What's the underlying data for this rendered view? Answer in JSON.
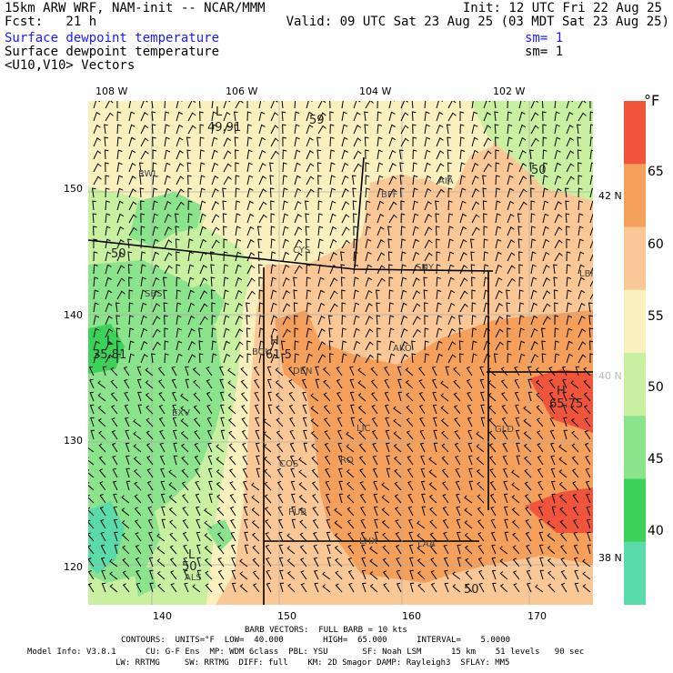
{
  "header": {
    "model_line": "15km ARW WRF, NAM-init -- NCAR/MMM",
    "init_line": "Init: 12 UTC Fri 22 Aug 25",
    "fcst_line": "Fcst:   21 h",
    "valid_line": "Valid: 09 UTC Sat 23 Aug 25 (03 MDT Sat 23 Aug 25)",
    "field1": "Surface dewpoint temperature",
    "field1_sm": "sm= 1",
    "field2": "Surface dewpoint temperature",
    "field2_sm": "sm= 1",
    "field3": "<U10,V10> Vectors"
  },
  "axes": {
    "top_lon": [
      "108 W",
      "106 W",
      "104 W",
      "102 W"
    ],
    "left_y": [
      "150",
      "140",
      "130",
      "120"
    ],
    "bottom_x": [
      "140",
      "150",
      "160",
      "170"
    ],
    "right_lat": [
      "42 N",
      "40 N",
      "38 N"
    ]
  },
  "legend": {
    "unit": "°F",
    "labels": [
      "65",
      "60",
      "55",
      "50",
      "45",
      "40"
    ],
    "colors": [
      "#f0553c",
      "#f5a05a",
      "#fac896",
      "#faf0be",
      "#c8f0a0",
      "#8be38b",
      "#3cd25a",
      "#5adcaa"
    ]
  },
  "map_labels": {
    "stations": [
      "RWL",
      "BFF",
      "AIA",
      "CYS",
      "SNY",
      "SBS",
      "BOU",
      "AKO",
      "DEN",
      "EXV",
      "LIC",
      "GLD",
      "COS",
      "RO",
      "PUB",
      "LHX",
      "LAA",
      "ALS",
      "LBF"
    ],
    "contours": [
      "50",
      "59",
      "50",
      "50",
      "50"
    ],
    "extremes": [
      {
        "kind": "L",
        "value": "49.91"
      },
      {
        "kind": "L",
        "value": "35.81"
      },
      {
        "kind": "H",
        "value": "61.5"
      },
      {
        "kind": "H",
        "value": "65.75"
      },
      {
        "kind": "L",
        "value": ""
      }
    ]
  },
  "footer": {
    "barb_line": "BARB VECTORS:  FULL BARB = 10 kts",
    "contours_line": "CONTOURS:  UNITS=°F  LOW=  40.000        HIGH=  65.000      INTERVAL=    5.0000",
    "model_info_line": "Model Info: V3.8.1      CU: G-F Ens  MP: WDM 6class  PBL: YSU       SF: Noah LSM      15 km    51 levels   90 sec",
    "physics_line": "LW: RRTMG     SW: RRTMG  DIFF: full    KM: 2D Smagor DAMP: Rayleigh3  SFLAY: MM5"
  }
}
